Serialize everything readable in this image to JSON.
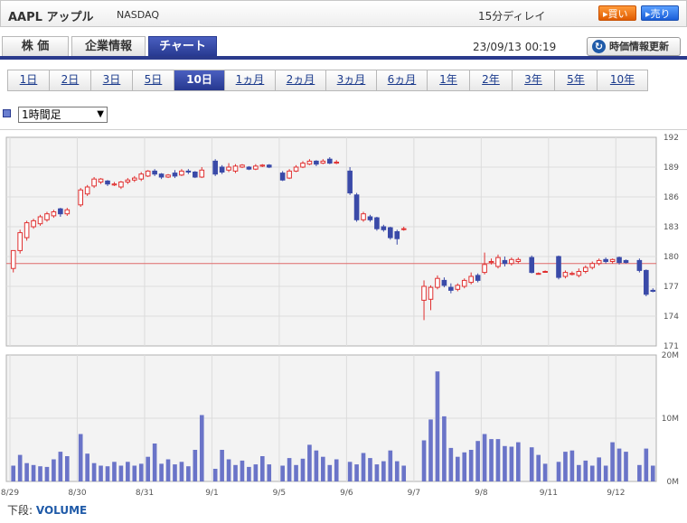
{
  "header": {
    "symbol": "AAPL アップル",
    "exchange": "NASDAQ",
    "delay": "15分ディレイ",
    "buy_label": "▸買い",
    "sell_label": "▸売り"
  },
  "tabs": [
    {
      "label": "株 価",
      "active": false
    },
    {
      "label": "企業情報",
      "active": false
    },
    {
      "label": "チャート",
      "active": true
    }
  ],
  "timestamp": "23/09/13 00:19",
  "refresh_label": "時価情報更新",
  "ranges": [
    {
      "label": "1日",
      "active": false
    },
    {
      "label": "2日",
      "active": false
    },
    {
      "label": "3日",
      "active": false
    },
    {
      "label": "5日",
      "active": false
    },
    {
      "label": "10日",
      "active": true
    },
    {
      "label": "1ヵ月",
      "active": false
    },
    {
      "label": "2ヵ月",
      "active": false
    },
    {
      "label": "3ヵ月",
      "active": false
    },
    {
      "label": "6ヵ月",
      "active": false
    },
    {
      "label": "1年",
      "active": false
    },
    {
      "label": "2年",
      "active": false
    },
    {
      "label": "3年",
      "active": false
    },
    {
      "label": "5年",
      "active": false
    },
    {
      "label": "10年",
      "active": false
    }
  ],
  "interval_select": "1時間足",
  "footer": {
    "prefix": "下段:",
    "label": "VOLUME"
  },
  "chart_data": {
    "type": "candlestick",
    "reference_line": 179.3,
    "price_axis": {
      "ticks": [
        "192",
        "189",
        "186",
        "183",
        "180",
        "177",
        "174",
        "171"
      ],
      "range": [
        171,
        192
      ]
    },
    "volume_axis": {
      "ticks": [
        "20M",
        "10M",
        "0M"
      ],
      "range": [
        0,
        20
      ]
    },
    "x_labels": [
      {
        "label": "8/29",
        "index": 0
      },
      {
        "label": "8/30",
        "index": 10
      },
      {
        "label": "8/31",
        "index": 20
      },
      {
        "label": "9/1",
        "index": 30
      },
      {
        "label": "9/5",
        "index": 40
      },
      {
        "label": "9/6",
        "index": 50
      },
      {
        "label": "9/7",
        "index": 60
      },
      {
        "label": "9/8",
        "index": 70
      },
      {
        "label": "9/11",
        "index": 80
      },
      {
        "label": "9/12",
        "index": 90
      }
    ],
    "colors": {
      "up": "#e03030",
      "down": "#3a4aa8",
      "volume": "#6a74c8",
      "ref": "#e06a6a"
    },
    "candles": [
      [
        178.8,
        180.6,
        179.6,
        178.4
      ],
      [
        180.6,
        182.4,
        182.7,
        180.3
      ],
      [
        181.9,
        183.4,
        183.6,
        181.6
      ],
      [
        183.0,
        183.6,
        183.8,
        182.8
      ],
      [
        183.3,
        184.0,
        184.2,
        183.1
      ],
      [
        183.7,
        184.3,
        184.5,
        183.5
      ],
      [
        184.1,
        184.5,
        184.7,
        183.9
      ],
      [
        184.8,
        184.3,
        184.9,
        184.0
      ],
      [
        184.3,
        184.7,
        184.9,
        184.1
      ],
      [
        null,
        null,
        null,
        null
      ],
      [
        185.2,
        186.7,
        186.9,
        185.0
      ],
      [
        186.3,
        187.0,
        187.2,
        186.1
      ],
      [
        187.1,
        187.8,
        188.0,
        186.9
      ],
      [
        187.5,
        187.8,
        187.9,
        187.3
      ],
      [
        187.6,
        187.3,
        187.7,
        187.1
      ],
      [
        187.2,
        187.3,
        187.5,
        187.1
      ],
      [
        187.0,
        187.5,
        187.6,
        186.8
      ],
      [
        187.5,
        187.7,
        187.9,
        187.3
      ],
      [
        187.7,
        187.9,
        188.1,
        187.5
      ],
      [
        187.8,
        188.3,
        188.5,
        187.6
      ],
      [
        188.1,
        188.6,
        188.7,
        188.0
      ],
      [
        188.6,
        188.3,
        188.8,
        188.1
      ],
      [
        188.3,
        188.0,
        188.4,
        187.8
      ],
      [
        188.0,
        188.2,
        188.3,
        187.9
      ],
      [
        188.4,
        188.1,
        188.7,
        187.9
      ],
      [
        188.2,
        188.6,
        188.8,
        188.1
      ],
      [
        188.6,
        188.5,
        188.8,
        188.3
      ],
      [
        188.5,
        188.0,
        188.6,
        187.9
      ],
      [
        188.0,
        188.7,
        189.0,
        187.9
      ],
      [
        null,
        null,
        null,
        null
      ],
      [
        189.6,
        188.3,
        189.8,
        188.1
      ],
      [
        189.0,
        188.5,
        189.2,
        188.3
      ],
      [
        188.7,
        189.0,
        189.4,
        188.5
      ],
      [
        188.6,
        189.1,
        189.3,
        188.4
      ],
      [
        189.0,
        189.2,
        189.3,
        188.9
      ],
      [
        189.0,
        188.8,
        189.1,
        188.7
      ],
      [
        188.8,
        189.1,
        189.3,
        188.7
      ],
      [
        189.1,
        189.2,
        189.3,
        189.0
      ],
      [
        189.2,
        189.0,
        189.3,
        188.9
      ],
      [
        null,
        null,
        null,
        null
      ],
      [
        188.4,
        187.7,
        188.6,
        187.6
      ],
      [
        187.9,
        188.6,
        188.8,
        187.8
      ],
      [
        188.6,
        189.0,
        189.2,
        188.5
      ],
      [
        189.0,
        189.4,
        189.6,
        188.9
      ],
      [
        189.3,
        189.6,
        189.8,
        189.2
      ],
      [
        189.6,
        189.3,
        189.7,
        189.1
      ],
      [
        189.4,
        189.6,
        189.8,
        189.3
      ],
      [
        189.8,
        189.4,
        190.0,
        189.3
      ],
      [
        189.4,
        189.5,
        189.7,
        189.3
      ],
      [
        null,
        null,
        null,
        null
      ],
      [
        188.6,
        186.4,
        189.0,
        186.2
      ],
      [
        186.2,
        183.7,
        186.4,
        183.5
      ],
      [
        183.7,
        184.3,
        184.5,
        183.5
      ],
      [
        184.0,
        183.7,
        184.2,
        183.5
      ],
      [
        183.9,
        182.8,
        184.0,
        182.6
      ],
      [
        183.0,
        182.7,
        183.2,
        182.5
      ],
      [
        182.9,
        181.9,
        183.0,
        181.7
      ],
      [
        182.5,
        181.8,
        182.7,
        181.2
      ],
      [
        182.8,
        182.8,
        183.0,
        182.6
      ],
      [
        null,
        null,
        null,
        null
      ],
      [
        null,
        null,
        null,
        null
      ],
      [
        175.6,
        177.0,
        177.6,
        173.6
      ],
      [
        175.7,
        176.9,
        177.1,
        174.6
      ],
      [
        176.9,
        177.8,
        178.1,
        176.7
      ],
      [
        177.6,
        177.1,
        177.9,
        176.9
      ],
      [
        176.9,
        176.6,
        177.3,
        176.3
      ],
      [
        176.7,
        177.1,
        177.3,
        176.5
      ],
      [
        177.0,
        177.6,
        177.8,
        176.8
      ],
      [
        177.4,
        178.0,
        178.4,
        177.2
      ],
      [
        178.1,
        177.6,
        178.3,
        177.4
      ],
      [
        178.4,
        179.2,
        180.4,
        178.2
      ],
      [
        179.4,
        179.5,
        179.8,
        179.2
      ],
      [
        179.0,
        179.9,
        180.2,
        178.8
      ],
      [
        179.6,
        179.3,
        180.0,
        179.0
      ],
      [
        179.3,
        179.7,
        179.9,
        179.1
      ],
      [
        179.5,
        179.7,
        179.9,
        179.3
      ],
      [
        null,
        null,
        null,
        null
      ],
      [
        179.9,
        178.4,
        180.1,
        178.3
      ],
      [
        178.3,
        178.3,
        178.4,
        178.2
      ],
      [
        178.5,
        178.5,
        178.6,
        178.4
      ],
      [
        null,
        null,
        null,
        null
      ],
      [
        180.0,
        177.9,
        180.1,
        177.7
      ],
      [
        178.0,
        178.4,
        178.6,
        177.8
      ],
      [
        178.2,
        178.3,
        178.5,
        178.1
      ],
      [
        178.1,
        178.5,
        178.8,
        177.9
      ],
      [
        178.5,
        178.9,
        179.1,
        178.3
      ],
      [
        178.9,
        179.3,
        179.5,
        178.7
      ],
      [
        179.3,
        179.6,
        179.8,
        179.1
      ],
      [
        179.7,
        179.5,
        179.9,
        179.3
      ],
      [
        179.5,
        179.7,
        179.8,
        179.3
      ],
      [
        179.9,
        179.4,
        180.0,
        179.2
      ],
      [
        179.6,
        179.4,
        179.7,
        179.3
      ],
      [
        null,
        null,
        null,
        null
      ],
      [
        179.6,
        178.6,
        179.8,
        178.4
      ],
      [
        178.6,
        176.2,
        178.7,
        176.0
      ],
      [
        176.6,
        176.5,
        176.8,
        176.4
      ]
    ],
    "volumes": [
      2.5,
      4.2,
      2.9,
      2.6,
      2.4,
      2.3,
      3.5,
      4.7,
      4.0,
      0,
      7.5,
      4.4,
      2.9,
      2.5,
      2.4,
      3.1,
      2.5,
      3.1,
      2.5,
      2.8,
      3.9,
      6.0,
      2.8,
      3.5,
      2.7,
      3.1,
      2.4,
      5.0,
      10.5,
      0,
      2.0,
      5.0,
      3.5,
      2.6,
      3.3,
      2.3,
      2.7,
      4.0,
      2.7,
      0,
      2.5,
      3.7,
      2.6,
      3.6,
      5.8,
      4.9,
      3.9,
      2.6,
      3.5,
      0,
      3.1,
      2.7,
      4.5,
      3.7,
      2.7,
      3.2,
      4.9,
      3.2,
      2.5,
      0,
      0,
      6.5,
      9.8,
      17.4,
      10.3,
      5.3,
      3.9,
      4.6,
      5.0,
      6.4,
      7.5,
      6.7,
      6.7,
      5.6,
      5.5,
      6.2,
      0,
      5.4,
      4.2,
      2.8,
      0,
      3.1,
      4.7,
      4.9,
      2.6,
      3.3,
      2.5,
      3.8,
      2.5,
      6.2,
      5.2,
      4.7,
      0,
      2.6,
      5.2,
      2.5
    ]
  }
}
